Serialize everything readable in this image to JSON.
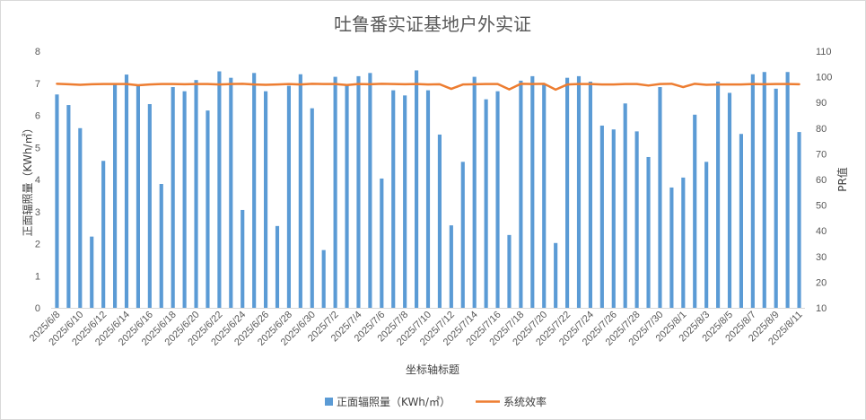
{
  "chart_data": {
    "type": "bar+line",
    "title": "吐鲁番实证基地户外实证",
    "xlabel": "坐标轴标题",
    "ylabel_left": "正面辐照量（KWh/㎡）",
    "ylabel_right": "PR值",
    "ylim_left": [
      0,
      8
    ],
    "ylim_right": [
      10,
      110
    ],
    "yticks_left": [
      "0",
      "1",
      "2",
      "3",
      "4",
      "5",
      "6",
      "7",
      "8"
    ],
    "yticks_right": [
      "10",
      "20",
      "30",
      "40",
      "50",
      "60",
      "70",
      "80",
      "90",
      "100",
      "110"
    ],
    "x_tick_labels": [
      "2025/6/8",
      "2025/6/10",
      "2025/6/12",
      "2025/6/14",
      "2025/6/16",
      "2025/6/18",
      "2025/6/20",
      "2025/6/22",
      "2025/6/24",
      "2025/6/26",
      "2025/6/28",
      "2025/6/30",
      "2025/7/2",
      "2025/7/4",
      "2025/7/6",
      "2025/7/8",
      "2025/7/10",
      "2025/7/12",
      "2025/7/14",
      "2025/7/16",
      "2025/7/18",
      "2025/7/20",
      "2025/7/22",
      "2025/7/24",
      "2025/7/26",
      "2025/7/28",
      "2025/7/30",
      "2025/8/1",
      "2025/8/3",
      "2025/8/5",
      "2025/8/7",
      "2025/8/9",
      "2025/8/11"
    ],
    "num_days": 65,
    "series": [
      {
        "name": "正面辐照量（KWh/㎡）",
        "type": "bar",
        "axis": "left",
        "color": "#5B9BD5",
        "values": [
          6.65,
          6.32,
          5.6,
          2.22,
          4.58,
          7.0,
          7.27,
          6.95,
          6.35,
          3.86,
          6.88,
          6.75,
          7.1,
          6.15,
          7.37,
          7.17,
          3.05,
          7.32,
          6.75,
          2.55,
          6.92,
          7.28,
          6.22,
          1.8,
          7.2,
          6.95,
          7.22,
          7.32,
          4.03,
          6.78,
          6.62,
          7.4,
          6.78,
          5.4,
          2.57,
          4.55,
          7.2,
          6.5,
          6.75,
          2.27,
          7.08,
          7.22,
          6.95,
          2.02,
          7.17,
          7.22,
          7.05,
          5.68,
          5.56,
          6.37,
          5.5,
          4.7,
          6.88,
          3.75,
          4.06,
          6.02,
          4.55,
          7.05,
          6.7,
          5.42,
          7.28,
          7.35,
          6.83,
          7.35,
          5.48
        ]
      },
      {
        "name": "系统效率",
        "type": "line",
        "axis": "right",
        "color": "#ED7D31",
        "values": [
          97.3,
          97.1,
          96.9,
          97.1,
          97.2,
          97.2,
          97.2,
          96.7,
          97.0,
          97.2,
          97.2,
          97.1,
          97.2,
          97.2,
          97.0,
          97.2,
          97.3,
          97.0,
          96.9,
          97.0,
          97.2,
          97.0,
          97.3,
          97.2,
          97.2,
          96.8,
          97.2,
          97.1,
          97.3,
          97.2,
          97.1,
          97.2,
          97.0,
          97.1,
          95.3,
          97.0,
          97.1,
          97.2,
          97.2,
          95.1,
          97.3,
          97.2,
          97.3,
          95.0,
          97.0,
          97.2,
          97.2,
          97.0,
          97.0,
          97.2,
          97.2,
          96.6,
          97.2,
          97.3,
          96.0,
          97.3,
          96.9,
          97.0,
          97.0,
          97.0,
          97.2,
          97.1,
          97.2,
          97.2,
          97.1
        ]
      }
    ],
    "legend": [
      "正面辐照量（KWh/㎡）",
      "系统效率"
    ],
    "legend_position": "bottom",
    "grid": false
  }
}
